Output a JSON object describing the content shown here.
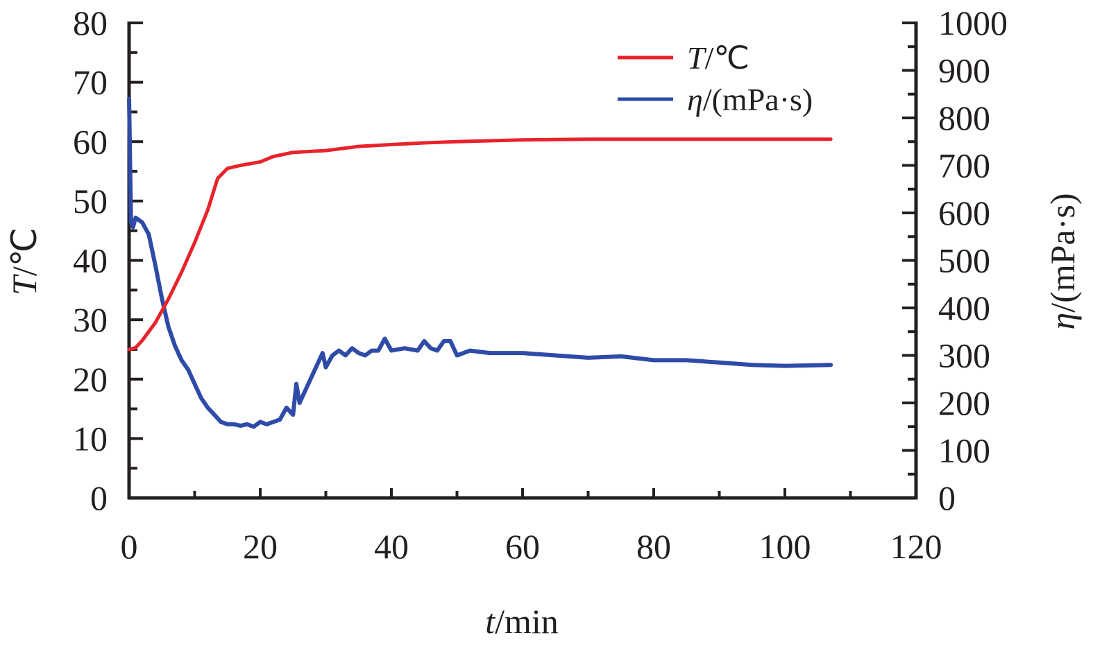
{
  "chart_data": {
    "type": "line",
    "title": "",
    "xlabel": {
      "var": "t",
      "unit": "/min"
    },
    "ylabel_left": {
      "var": "T",
      "unit": "/℃"
    },
    "ylabel_right": {
      "var": "η",
      "unit": "/(mPa·s)"
    },
    "xlim": [
      0,
      120
    ],
    "ylim_left": [
      0,
      80
    ],
    "ylim_right": [
      0,
      1000
    ],
    "x_ticks": [
      "0",
      "20",
      "40",
      "60",
      "80",
      "100",
      "120"
    ],
    "y_left_ticks": [
      "0",
      "10",
      "20",
      "30",
      "40",
      "50",
      "60",
      "70",
      "80"
    ],
    "y_right_ticks": [
      "0",
      "100",
      "200",
      "300",
      "400",
      "500",
      "600",
      "700",
      "800",
      "900",
      "1000"
    ],
    "grid": false,
    "legend_position": "top-right",
    "series": [
      {
        "name": {
          "var": "T",
          "unit": "/℃"
        },
        "axis": "left",
        "color": "#e8232b",
        "x": [
          0,
          1,
          2,
          4,
          6,
          8,
          10,
          12,
          13.5,
          15,
          17,
          20,
          22,
          25,
          30,
          35,
          40,
          45,
          50,
          60,
          70,
          80,
          90,
          107
        ],
        "y": [
          25,
          25.3,
          26.5,
          29.5,
          33.5,
          38,
          43,
          48.5,
          53.8,
          55.5,
          56,
          56.6,
          57.5,
          58.2,
          58.5,
          59.2,
          59.5,
          59.8,
          60,
          60.3,
          60.4,
          60.4,
          60.4,
          60.4
        ]
      },
      {
        "name": {
          "var": "η",
          "unit": "/(mPa·s)"
        },
        "axis": "right",
        "color": "#2e4ba8",
        "x": [
          0,
          0.3,
          0.6,
          1,
          2,
          3,
          4,
          5,
          6,
          7,
          8,
          9,
          10,
          11,
          12,
          13,
          14,
          15,
          16,
          17,
          18,
          19,
          20,
          21,
          22,
          23,
          24,
          25,
          25.5,
          26,
          27,
          28,
          29,
          29.5,
          30,
          31,
          32,
          33,
          34,
          35,
          36,
          37,
          38,
          39,
          40,
          42,
          44,
          45,
          46,
          47,
          48,
          49,
          50,
          52,
          55,
          60,
          65,
          70,
          75,
          80,
          85,
          90,
          95,
          100,
          107
        ],
        "y": [
          840,
          580,
          570,
          590,
          580,
          555,
          490,
          420,
          360,
          320,
          290,
          270,
          240,
          210,
          190,
          175,
          160,
          155,
          155,
          152,
          155,
          150,
          160,
          155,
          160,
          165,
          190,
          175,
          240,
          200,
          230,
          260,
          290,
          305,
          275,
          300,
          310,
          300,
          315,
          305,
          300,
          310,
          310,
          335,
          310,
          315,
          310,
          330,
          315,
          310,
          330,
          330,
          300,
          310,
          305,
          305,
          300,
          295,
          298,
          290,
          290,
          285,
          280,
          278,
          280
        ]
      }
    ]
  }
}
